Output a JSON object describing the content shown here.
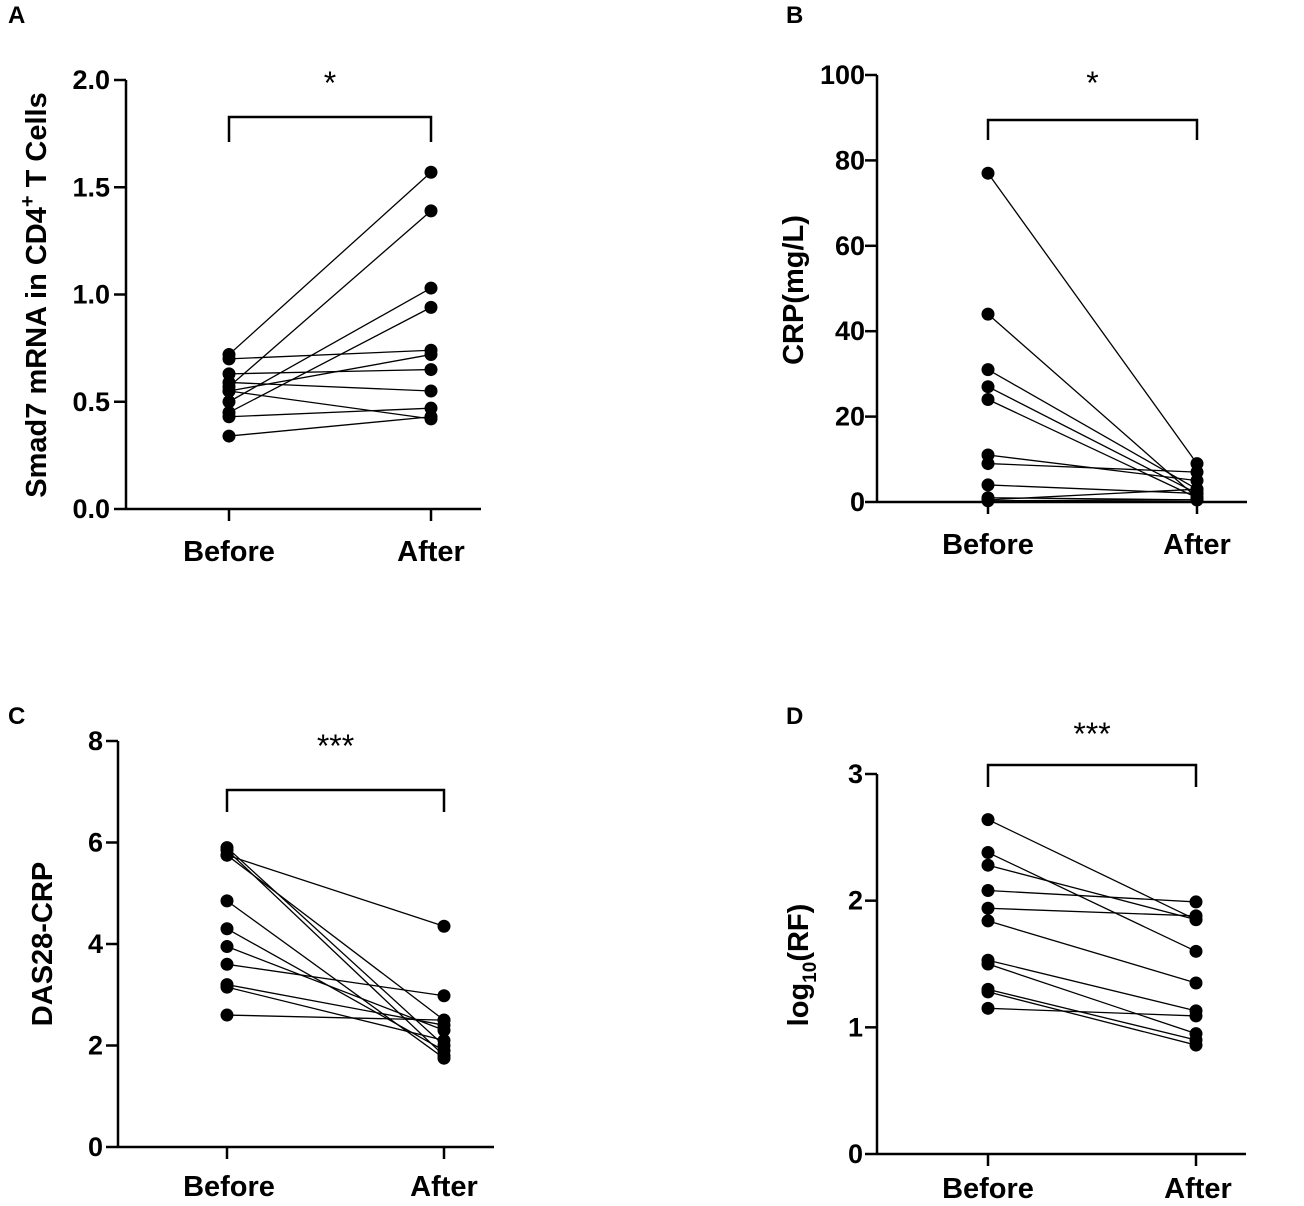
{
  "figure": {
    "colors": {
      "ink": "#000000",
      "background": "#ffffff"
    }
  },
  "chart_data": [
    {
      "panel": "A",
      "type": "scatter",
      "subtype": "paired before-after",
      "title": "",
      "ylabel": "Smad7 mRNA in CD4",
      "ylabel_superscript": "+",
      "ylabel_suffix": " T Cells",
      "xlabel": "",
      "categories": [
        "Before",
        "After"
      ],
      "ylim": [
        0,
        2.0
      ],
      "yticks": [
        0.0,
        0.5,
        1.0,
        1.5,
        2.0
      ],
      "ytick_labels": [
        "0.0",
        "0.5",
        "1.0",
        "1.5",
        "2.0"
      ],
      "significance": "*",
      "pairs": [
        [
          0.72,
          1.57
        ],
        [
          0.7,
          0.74
        ],
        [
          0.63,
          0.65
        ],
        [
          0.59,
          0.55
        ],
        [
          0.57,
          1.39
        ],
        [
          0.55,
          0.72
        ],
        [
          0.5,
          1.03
        ],
        [
          0.45,
          0.94
        ],
        [
          0.43,
          0.47
        ],
        [
          0.55,
          0.42
        ],
        [
          0.34,
          0.43
        ]
      ]
    },
    {
      "panel": "B",
      "type": "scatter",
      "subtype": "paired before-after",
      "title": "",
      "ylabel": "CRP(mg/L)",
      "xlabel": "",
      "categories": [
        "Before",
        "After"
      ],
      "ylim": [
        0,
        100
      ],
      "yticks": [
        0,
        20,
        40,
        60,
        80,
        100
      ],
      "ytick_labels": [
        "0",
        "20",
        "40",
        "60",
        "80",
        "100"
      ],
      "significance": "*",
      "pairs": [
        [
          77,
          9
        ],
        [
          44,
          1
        ],
        [
          31,
          3
        ],
        [
          27,
          2
        ],
        [
          24,
          1
        ],
        [
          11,
          5
        ],
        [
          9,
          7
        ],
        [
          4,
          2
        ],
        [
          1,
          0.5
        ],
        [
          0.5,
          3
        ],
        [
          0.3,
          0.5
        ]
      ]
    },
    {
      "panel": "C",
      "type": "scatter",
      "subtype": "paired before-after",
      "title": "",
      "ylabel": "DAS28-CRP",
      "xlabel": "",
      "categories": [
        "Before",
        "After"
      ],
      "ylim": [
        0,
        8
      ],
      "yticks": [
        0,
        2,
        4,
        6,
        8
      ],
      "ytick_labels": [
        "0",
        "2",
        "4",
        "6",
        "8"
      ],
      "significance": "***",
      "pairs": [
        [
          5.9,
          2.0
        ],
        [
          5.85,
          1.8
        ],
        [
          5.75,
          2.5
        ],
        [
          4.85,
          1.75
        ],
        [
          4.3,
          1.9
        ],
        [
          3.95,
          2.3
        ],
        [
          3.6,
          2.98
        ],
        [
          3.2,
          2.4
        ],
        [
          3.15,
          2.1
        ],
        [
          2.6,
          2.5
        ],
        [
          5.75,
          4.35
        ]
      ]
    },
    {
      "panel": "D",
      "type": "scatter",
      "subtype": "paired before-after",
      "title": "",
      "ylabel": "log",
      "ylabel_subscript": "10",
      "ylabel_suffix": "(RF)",
      "xlabel": "",
      "categories": [
        "Before",
        "After"
      ],
      "ylim": [
        0,
        3
      ],
      "yticks": [
        0,
        1,
        2,
        3
      ],
      "ytick_labels": [
        "0",
        "1",
        "2",
        "3"
      ],
      "significance": "***",
      "pairs": [
        [
          2.64,
          1.85
        ],
        [
          2.38,
          1.6
        ],
        [
          2.28,
          1.85
        ],
        [
          2.08,
          1.99
        ],
        [
          1.94,
          1.88
        ],
        [
          1.84,
          1.35
        ],
        [
          1.53,
          1.13
        ],
        [
          1.5,
          0.95
        ],
        [
          1.3,
          0.9
        ],
        [
          1.28,
          0.86
        ],
        [
          1.15,
          1.09
        ]
      ]
    }
  ]
}
